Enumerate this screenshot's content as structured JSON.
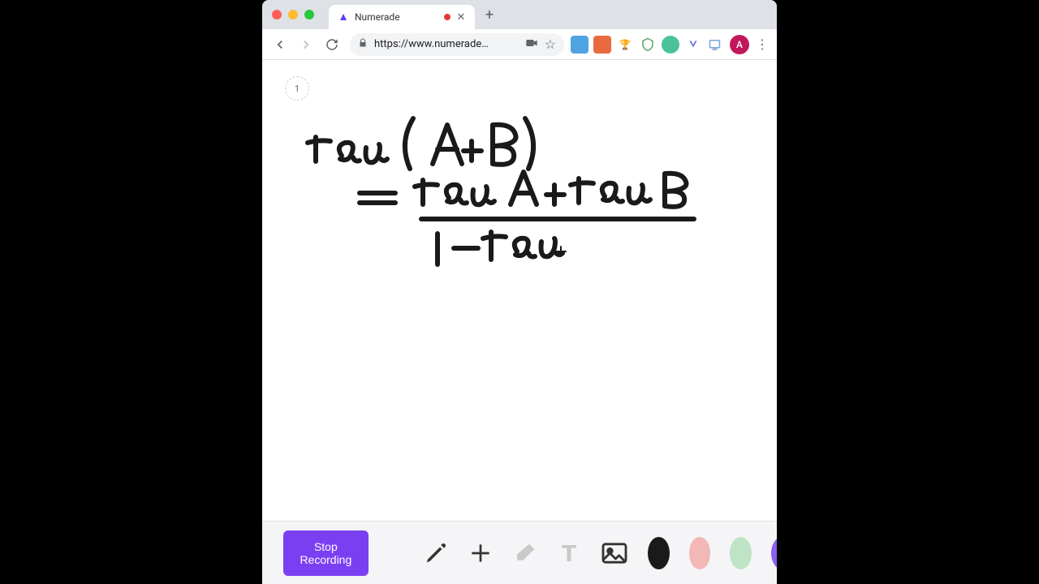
{
  "window": {
    "traffic_lights": {
      "close": "#ff5f57",
      "minimize": "#febc2e",
      "maximize": "#28c840"
    }
  },
  "tabs": {
    "active": {
      "title": "Numerade",
      "favicon_color": "#5b3ff2"
    },
    "recording_dot_color": "#e53935"
  },
  "toolbar": {
    "url": "https://www.numerade…",
    "extensions": [
      {
        "bg": "#4285f4",
        "glyph": ""
      },
      {
        "bg": "#ea4335",
        "glyph": ""
      },
      {
        "bg": "#fbbc04",
        "glyph": "🏆"
      },
      {
        "bg": "transparent",
        "glyph": "",
        "stroke": "#34a853"
      },
      {
        "bg": "#34a853",
        "glyph": ""
      },
      {
        "bg": "transparent",
        "glyph": "",
        "stroke": "#4285f4"
      },
      {
        "bg": "#e8eaed",
        "glyph": ""
      }
    ],
    "avatar": {
      "bg": "#c2185b",
      "letter": "A"
    }
  },
  "page": {
    "indicator": "1"
  },
  "handwriting": {
    "stroke_color": "#1a1a1a",
    "stroke_width": 6,
    "lines": [
      {
        "text": "tan(A+B)"
      },
      {
        "text": "= (tan A + tan B) / (1 − tan"
      }
    ]
  },
  "bottom_bar": {
    "record_label": "Stop Recording",
    "record_bg": "#7b3ff2",
    "colors": {
      "black": "#1a1a1a",
      "pink": "#f2b8b8",
      "green": "#bfe3c5",
      "purple_edge": "#8a5ff2"
    }
  }
}
